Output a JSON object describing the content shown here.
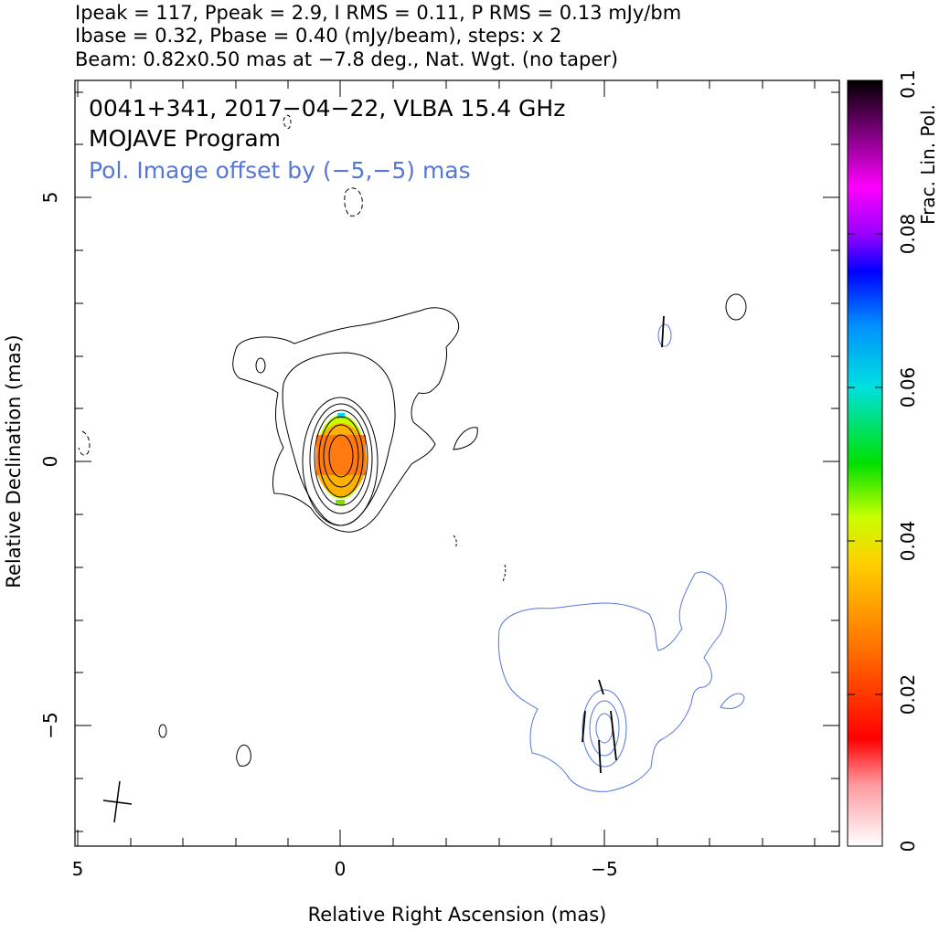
{
  "header": {
    "line1": "Ipeak = 117, Ppeak = 2.9, I RMS = 0.11, P RMS = 0.13 mJy/bm",
    "line2": "Ibase = 0.32, Pbase = 0.40 (mJy/beam), steps: x 2",
    "line3": "Beam: 0.82x0.50 mas at −7.8 deg., Nat. Wgt. (no taper)"
  },
  "annotations": {
    "source": "0041+341, 2017−04−22, VLBA 15.4 GHz",
    "program": "MOJAVE Program",
    "offset": "Pol. Image offset by (−5,−5) mas"
  },
  "chart_data": {
    "type": "heatmap",
    "xlabel": "Relative Right Ascension (mas)",
    "ylabel": "Relative Declination (mas)",
    "xlim": [
      5.05,
      -9.4
    ],
    "ylim": [
      -7.1,
      7.3
    ],
    "x_ticks": [
      5,
      0,
      -5
    ],
    "x_tick_labels": [
      "5",
      "0",
      "−5"
    ],
    "y_ticks": [
      5,
      0,
      -5
    ],
    "y_tick_labels": [
      "5",
      "0",
      "−5"
    ],
    "colorbar": {
      "label": "Frac. Lin. Pol.",
      "range": [
        0,
        0.1
      ],
      "ticks": [
        0,
        0.02,
        0.04,
        0.06,
        0.08,
        0.1
      ],
      "tick_labels": [
        "0",
        "0.02",
        "0.04",
        "0.06",
        "0.08",
        "0.1"
      ],
      "colors": [
        "#ffffff",
        "#ff9aa0",
        "#ff0000",
        "#ff6a00",
        "#ffd000",
        "#c8ff00",
        "#00e000",
        "#00e0e0",
        "#0090ff",
        "#0000ff",
        "#9a00ff",
        "#ff00ff",
        "#800080",
        "#000000"
      ]
    },
    "stokes_i_contours_mJy_per_beam": [
      0.32,
      0.64,
      1.28,
      2.56,
      5.12,
      10.24,
      20.48,
      40.96,
      81.92
    ],
    "core": {
      "ra": 0,
      "dec": 0,
      "frac_pol": 0.025
    },
    "pol_image_offset_mas": [
      -5,
      -5
    ],
    "beam": {
      "major_mas": 0.82,
      "minor_mas": 0.5,
      "pa_deg": -7.8
    },
    "colors": {
      "i_contour": "#000000",
      "p_contour": "#5577d6",
      "evpa": "#000000"
    }
  }
}
